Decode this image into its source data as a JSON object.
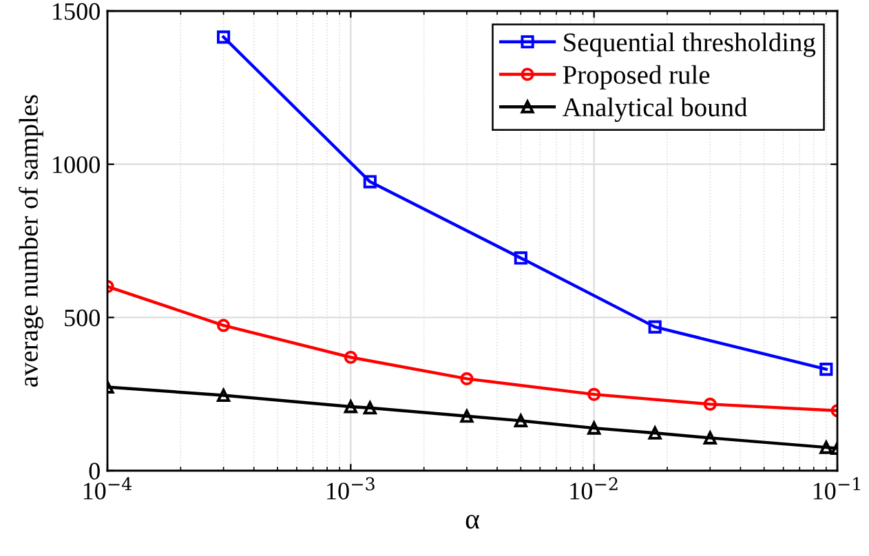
{
  "chart_data": {
    "type": "line",
    "xlabel": "α",
    "ylabel": "average number of samples",
    "log": "x",
    "xlim": [
      0.0001,
      0.1
    ],
    "xticks": [
      {
        "value": 0.0001,
        "label": "10$^{−4}$"
      },
      {
        "value": 0.001,
        "label": "10$^{−3}$"
      },
      {
        "value": 0.01,
        "label": "10$^{−2}$"
      },
      {
        "value": 0.1,
        "label": "10$^{−1}$"
      }
    ],
    "ylim": [
      0,
      1500
    ],
    "yticks": [
      0,
      500,
      1000,
      1500
    ],
    "grid": true,
    "legend": "top right",
    "series": [
      {
        "name": "Sequential thresholding",
        "color": "#0000ff",
        "marker": "square",
        "x": [
          0.0003,
          0.0012,
          0.005,
          0.0178,
          0.09
        ],
        "values": [
          1415,
          943,
          694,
          469,
          331
        ]
      },
      {
        "name": "Proposed rule",
        "color": "#ff0000",
        "marker": "circle",
        "x": [
          0.0001,
          0.0003,
          0.001,
          0.003,
          0.01,
          0.03,
          0.1
        ],
        "values": [
          601,
          474,
          370,
          300,
          249,
          217,
          196
        ]
      },
      {
        "name": "Analytical bound",
        "color": "#000000",
        "marker": "triangle",
        "x": [
          0.0001,
          0.0003,
          0.001,
          0.0012,
          0.003,
          0.005,
          0.01,
          0.0178,
          0.03,
          0.09,
          0.1
        ],
        "values": [
          273,
          246,
          209,
          205,
          178,
          163,
          139,
          123,
          107,
          76,
          73
        ]
      }
    ]
  }
}
